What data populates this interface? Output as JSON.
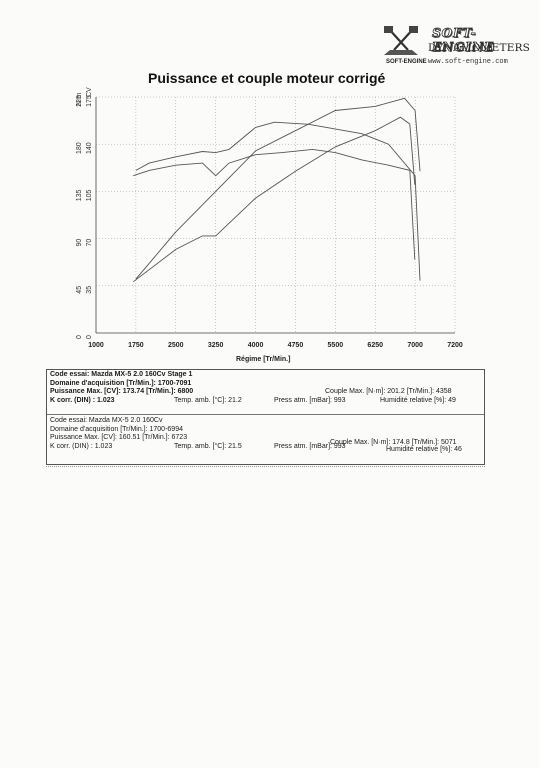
{
  "header": {
    "brand": "SOFT-ENGINE",
    "sub": "DYNAMOMETERS",
    "small_logo": "SOFT-ENGINE",
    "url": "www.soft-engine.com",
    "logo_icon": "crossed-pistons-icon"
  },
  "chart_data": {
    "type": "line",
    "title": "Puissance et couple moteur corrigé",
    "xlabel": "Régime [Tr/Min.]",
    "x_ticks": [
      "1000",
      "1750",
      "2500",
      "3250",
      "4000",
      "4750",
      "5500",
      "6250",
      "7000",
      "7200"
    ],
    "y_units": [
      "N·m",
      "CV"
    ],
    "y_ticks_nm": [
      "0",
      "45",
      "90",
      "135",
      "180",
      "225"
    ],
    "y_ticks_cv": [
      "0",
      "35",
      "70",
      "105",
      "140",
      "175"
    ],
    "ylim_nm": [
      0,
      225
    ],
    "ylim_cv": [
      0,
      175
    ],
    "grid": true,
    "series": [
      {
        "axis": "N·m",
        "x": [
          1750,
          2000,
          2500,
          3000,
          3250,
          3500,
          4000,
          4358,
          5000,
          6000,
          6500,
          7000,
          7091
        ],
        "y": [
          155,
          162,
          168,
          173,
          172,
          175,
          196,
          201,
          199,
          190,
          180,
          150,
          50
        ]
      },
      {
        "axis": "CV",
        "x": [
          1750,
          2500,
          3250,
          4000,
          4750,
          5500,
          6250,
          6800,
          7000,
          7091
        ],
        "y": [
          40,
          75,
          105,
          135,
          150,
          165,
          168,
          174,
          165,
          120
        ]
      },
      {
        "axis": "N·m",
        "x": [
          1700,
          2000,
          2500,
          3000,
          3250,
          3500,
          4000,
          4500,
          5071,
          5500,
          6000,
          6500,
          6900,
          6994
        ],
        "y": [
          150,
          155,
          160,
          162,
          150,
          162,
          170,
          172,
          175,
          172,
          165,
          160,
          155,
          70
        ]
      },
      {
        "axis": "CV",
        "x": [
          1700,
          2500,
          3000,
          3250,
          4000,
          4750,
          5500,
          6250,
          6723,
          6900,
          6994
        ],
        "y": [
          38,
          62,
          72,
          72,
          100,
          120,
          138,
          150,
          160,
          155,
          110
        ]
      }
    ]
  },
  "info": {
    "test1": {
      "code": "Code essai: Mazda MX-5 2.0 160Cv Stage 1",
      "domain": "Domaine d'acquisition [Tr/Min.]: 1700-7091",
      "power": "Puissance Max. [CV]: 173.74   [Tr/Min.]: 6800",
      "kcorr": "K corr. (DIN) : 1.023",
      "temp": "Temp. amb. [°C]: 21.2",
      "press": "Press atm. [mBar]: 993",
      "torque": "Couple Max. [N·m]: 201.2   [Tr/Min.]: 4358",
      "humidity": "Humidité relative [%]: 49"
    },
    "test2": {
      "code": "Code essai: Mazda MX-5 2.0 160Cv",
      "domain": "Domaine d'acquisition [Tr/Min.]: 1700-6994",
      "power": "Puissance Max. [CV]: 160.51   [Tr/Min.]: 6723",
      "kcorr": "K corr. (DIN) : 1.023",
      "temp": "Temp. amb. [°C]: 21.5",
      "press": "Press atm. [mBar]: 993",
      "torque": "Couple Max. [N·m]: 174.8   [Tr/Min.]: 5071",
      "humidity": "Humidité relative [%]: 46"
    }
  }
}
